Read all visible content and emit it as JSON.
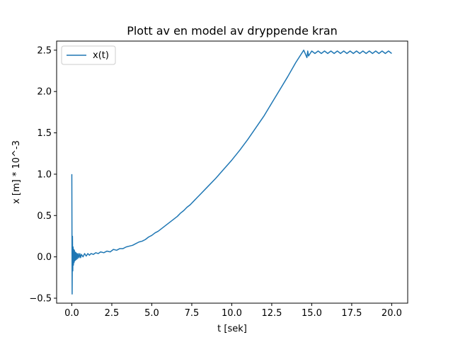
{
  "chart_data": {
    "type": "line",
    "title": "Plott av en model av dryppende kran",
    "xlabel": "t [sek]",
    "ylabel": "x [m] * 10^-3",
    "xlim": [
      -0.95,
      21.0
    ],
    "ylim": [
      -0.56,
      2.61
    ],
    "xticks": [
      0.0,
      2.5,
      5.0,
      7.5,
      10.0,
      12.5,
      15.0,
      17.5,
      20.0
    ],
    "xtick_labels": [
      "0.0",
      "2.5",
      "5.0",
      "7.5",
      "10.0",
      "12.5",
      "15.0",
      "17.5",
      "20.0"
    ],
    "yticks": [
      -0.5,
      0.0,
      0.5,
      1.0,
      1.5,
      2.0,
      2.5
    ],
    "ytick_labels": [
      "−0.5",
      "0.0",
      "0.5",
      "1.0",
      "1.5",
      "2.0",
      "2.5"
    ],
    "grid": false,
    "legend": {
      "position": "upper-left"
    },
    "series": [
      {
        "name": "x(t)",
        "color": "#1f77b4",
        "x": [
          0.0,
          0.02,
          0.04,
          0.06,
          0.08,
          0.1,
          0.12,
          0.14,
          0.16,
          0.18,
          0.2,
          0.23,
          0.26,
          0.29,
          0.32,
          0.36,
          0.4,
          0.45,
          0.5,
          0.55,
          0.6,
          0.7,
          0.8,
          0.9,
          1.0,
          1.1,
          1.2,
          1.35,
          1.5,
          1.65,
          1.8,
          2.0,
          2.2,
          2.4,
          2.6,
          2.8,
          3.0,
          3.2,
          3.4,
          3.6,
          3.8,
          4.0,
          4.2,
          4.4,
          4.6,
          4.8,
          5.0,
          5.2,
          5.4,
          5.6,
          5.8,
          6.0,
          6.2,
          6.4,
          6.6,
          6.8,
          7.0,
          7.2,
          7.4,
          7.6,
          7.8,
          8.0,
          8.5,
          9.0,
          9.5,
          10.0,
          10.5,
          11.0,
          11.5,
          12.0,
          12.5,
          13.0,
          13.5,
          14.0,
          14.5,
          14.7,
          14.75,
          14.8,
          15.0,
          15.2,
          15.4,
          15.6,
          15.8,
          16.0,
          16.2,
          16.4,
          16.6,
          16.8,
          17.0,
          17.2,
          17.4,
          17.6,
          17.8,
          18.0,
          18.2,
          18.4,
          18.6,
          18.8,
          19.0,
          19.2,
          19.4,
          19.6,
          19.8,
          20.0
        ],
        "y": [
          1.0,
          -0.45,
          0.25,
          -0.17,
          0.12,
          -0.1,
          0.09,
          -0.07,
          0.08,
          -0.05,
          0.06,
          -0.04,
          0.05,
          -0.03,
          0.04,
          -0.02,
          0.04,
          -0.01,
          0.04,
          -0.01,
          0.03,
          0.0,
          0.04,
          0.01,
          0.04,
          0.02,
          0.04,
          0.03,
          0.05,
          0.04,
          0.06,
          0.05,
          0.07,
          0.06,
          0.09,
          0.08,
          0.1,
          0.1,
          0.12,
          0.13,
          0.14,
          0.16,
          0.18,
          0.19,
          0.21,
          0.24,
          0.26,
          0.29,
          0.31,
          0.34,
          0.37,
          0.4,
          0.43,
          0.46,
          0.49,
          0.53,
          0.56,
          0.6,
          0.63,
          0.67,
          0.71,
          0.75,
          0.85,
          0.95,
          1.06,
          1.17,
          1.29,
          1.42,
          1.56,
          1.7,
          1.86,
          2.02,
          2.18,
          2.35,
          2.5,
          2.41,
          2.49,
          2.43,
          2.49,
          2.46,
          2.49,
          2.46,
          2.49,
          2.46,
          2.49,
          2.46,
          2.49,
          2.46,
          2.49,
          2.46,
          2.49,
          2.46,
          2.49,
          2.46,
          2.49,
          2.46,
          2.49,
          2.46,
          2.49,
          2.46,
          2.49,
          2.46,
          2.49,
          2.46
        ]
      }
    ]
  }
}
